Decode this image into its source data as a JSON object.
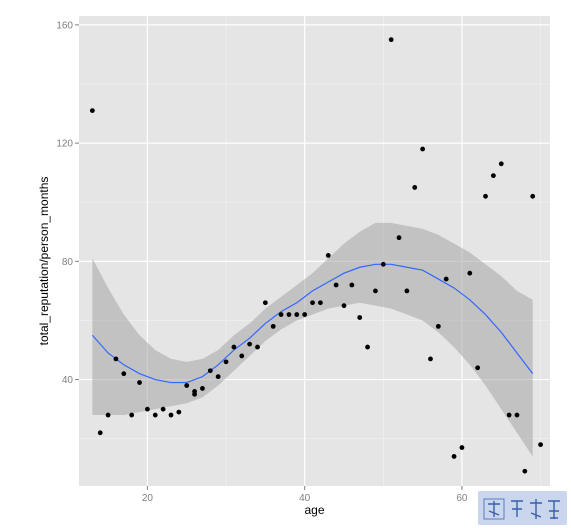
{
  "chart_data": {
    "type": "scatter",
    "title": "",
    "xlabel": "age",
    "ylabel": "total_reputation/person_months",
    "xlim": [
      11,
      64
    ],
    "ylim": [
      4,
      163
    ],
    "x_ticks": [
      20,
      40,
      60
    ],
    "y_ticks": [
      40,
      80,
      120,
      160
    ],
    "grid": true,
    "legend": "none",
    "colors": {
      "panel": "#e5e5e5",
      "grid_major": "#ffffff",
      "grid_minor": "#f2f2f2",
      "points": "#000000",
      "smooth_line": "#3366ff",
      "confidence_band": "#a6a6a6"
    },
    "points": [
      {
        "x": 13,
        "y": 131
      },
      {
        "x": 14,
        "y": 22
      },
      {
        "x": 15,
        "y": 28
      },
      {
        "x": 16,
        "y": 47
      },
      {
        "x": 17,
        "y": 42
      },
      {
        "x": 18,
        "y": 28
      },
      {
        "x": 19,
        "y": 39
      },
      {
        "x": 20,
        "y": 30
      },
      {
        "x": 21,
        "y": 28
      },
      {
        "x": 22,
        "y": 30
      },
      {
        "x": 23,
        "y": 28
      },
      {
        "x": 24,
        "y": 29
      },
      {
        "x": 25,
        "y": 38
      },
      {
        "x": 26,
        "y": 35
      },
      {
        "x": 26,
        "y": 36
      },
      {
        "x": 27,
        "y": 37
      },
      {
        "x": 28,
        "y": 43
      },
      {
        "x": 29,
        "y": 41
      },
      {
        "x": 30,
        "y": 46
      },
      {
        "x": 31,
        "y": 51
      },
      {
        "x": 32,
        "y": 48
      },
      {
        "x": 33,
        "y": 52
      },
      {
        "x": 34,
        "y": 51
      },
      {
        "x": 35,
        "y": 66
      },
      {
        "x": 36,
        "y": 58
      },
      {
        "x": 37,
        "y": 62
      },
      {
        "x": 38,
        "y": 62
      },
      {
        "x": 39,
        "y": 62
      },
      {
        "x": 40,
        "y": 62
      },
      {
        "x": 41,
        "y": 66
      },
      {
        "x": 42,
        "y": 66
      },
      {
        "x": 43,
        "y": 82
      },
      {
        "x": 44,
        "y": 72
      },
      {
        "x": 45,
        "y": 65
      },
      {
        "x": 46,
        "y": 72
      },
      {
        "x": 47,
        "y": 61
      },
      {
        "x": 48,
        "y": 51
      },
      {
        "x": 49,
        "y": 70
      },
      {
        "x": 50,
        "y": 79
      },
      {
        "x": 51,
        "y": 155
      },
      {
        "x": 52,
        "y": 88
      },
      {
        "x": 53,
        "y": 70
      },
      {
        "x": 54,
        "y": 105
      },
      {
        "x": 55,
        "y": 118
      },
      {
        "x": 56,
        "y": 47
      },
      {
        "x": 57,
        "y": 58
      },
      {
        "x": 58,
        "y": 74
      },
      {
        "x": 59,
        "y": 14
      },
      {
        "x": 60,
        "y": 17
      },
      {
        "x": 61,
        "y": 76
      },
      {
        "x": 62,
        "y": 44
      },
      {
        "x": 63,
        "y": 102
      },
      {
        "x": 64,
        "y": 109
      },
      {
        "x": 65,
        "y": 113
      },
      {
        "x": 66,
        "y": 28
      },
      {
        "x": 67,
        "y": 28
      },
      {
        "x": 68,
        "y": 9
      },
      {
        "x": 69,
        "y": 102
      },
      {
        "x": 70,
        "y": 18
      }
    ],
    "smooth_line": [
      {
        "x": 13,
        "y": 55
      },
      {
        "x": 15,
        "y": 49
      },
      {
        "x": 17,
        "y": 45
      },
      {
        "x": 19,
        "y": 42
      },
      {
        "x": 21,
        "y": 40
      },
      {
        "x": 23,
        "y": 39
      },
      {
        "x": 25,
        "y": 39
      },
      {
        "x": 27,
        "y": 41
      },
      {
        "x": 29,
        "y": 45
      },
      {
        "x": 31,
        "y": 50
      },
      {
        "x": 33,
        "y": 54
      },
      {
        "x": 35,
        "y": 59
      },
      {
        "x": 37,
        "y": 63
      },
      {
        "x": 39,
        "y": 66
      },
      {
        "x": 41,
        "y": 70
      },
      {
        "x": 43,
        "y": 73
      },
      {
        "x": 45,
        "y": 76
      },
      {
        "x": 47,
        "y": 78
      },
      {
        "x": 49,
        "y": 79
      },
      {
        "x": 51,
        "y": 79
      },
      {
        "x": 53,
        "y": 78
      },
      {
        "x": 55,
        "y": 77
      },
      {
        "x": 57,
        "y": 74
      },
      {
        "x": 59,
        "y": 71
      },
      {
        "x": 61,
        "y": 67
      },
      {
        "x": 63,
        "y": 62
      },
      {
        "x": 65,
        "y": 56
      },
      {
        "x": 67,
        "y": 49
      },
      {
        "x": 69,
        "y": 42
      }
    ],
    "confidence_band": {
      "upper": [
        {
          "x": 13,
          "y": 81
        },
        {
          "x": 15,
          "y": 71
        },
        {
          "x": 17,
          "y": 62
        },
        {
          "x": 19,
          "y": 55
        },
        {
          "x": 21,
          "y": 50
        },
        {
          "x": 23,
          "y": 47
        },
        {
          "x": 25,
          "y": 46
        },
        {
          "x": 27,
          "y": 47
        },
        {
          "x": 29,
          "y": 50
        },
        {
          "x": 31,
          "y": 55
        },
        {
          "x": 33,
          "y": 59
        },
        {
          "x": 35,
          "y": 64
        },
        {
          "x": 37,
          "y": 68
        },
        {
          "x": 39,
          "y": 72
        },
        {
          "x": 41,
          "y": 76
        },
        {
          "x": 43,
          "y": 81
        },
        {
          "x": 45,
          "y": 86
        },
        {
          "x": 47,
          "y": 90
        },
        {
          "x": 49,
          "y": 93
        },
        {
          "x": 51,
          "y": 93
        },
        {
          "x": 53,
          "y": 92
        },
        {
          "x": 55,
          "y": 91
        },
        {
          "x": 57,
          "y": 89
        },
        {
          "x": 59,
          "y": 86
        },
        {
          "x": 61,
          "y": 83
        },
        {
          "x": 63,
          "y": 79
        },
        {
          "x": 65,
          "y": 75
        },
        {
          "x": 67,
          "y": 70
        },
        {
          "x": 69,
          "y": 67
        }
      ],
      "lower": [
        {
          "x": 13,
          "y": 28
        },
        {
          "x": 15,
          "y": 28
        },
        {
          "x": 17,
          "y": 28
        },
        {
          "x": 19,
          "y": 29
        },
        {
          "x": 21,
          "y": 30
        },
        {
          "x": 23,
          "y": 31
        },
        {
          "x": 25,
          "y": 32
        },
        {
          "x": 27,
          "y": 34
        },
        {
          "x": 29,
          "y": 38
        },
        {
          "x": 31,
          "y": 43
        },
        {
          "x": 33,
          "y": 48
        },
        {
          "x": 35,
          "y": 53
        },
        {
          "x": 37,
          "y": 57
        },
        {
          "x": 39,
          "y": 60
        },
        {
          "x": 41,
          "y": 62
        },
        {
          "x": 43,
          "y": 64
        },
        {
          "x": 45,
          "y": 65
        },
        {
          "x": 47,
          "y": 66
        },
        {
          "x": 49,
          "y": 65
        },
        {
          "x": 51,
          "y": 64
        },
        {
          "x": 53,
          "y": 62
        },
        {
          "x": 55,
          "y": 60
        },
        {
          "x": 57,
          "y": 56
        },
        {
          "x": 59,
          "y": 51
        },
        {
          "x": 61,
          "y": 45
        },
        {
          "x": 63,
          "y": 38
        },
        {
          "x": 65,
          "y": 30
        },
        {
          "x": 67,
          "y": 22
        },
        {
          "x": 69,
          "y": 14
        }
      ]
    }
  },
  "watermark": {
    "icon": "seal-watermark-icon",
    "text": "永不在线",
    "color": "#3a5fa8",
    "background": "#c9d6ee"
  }
}
